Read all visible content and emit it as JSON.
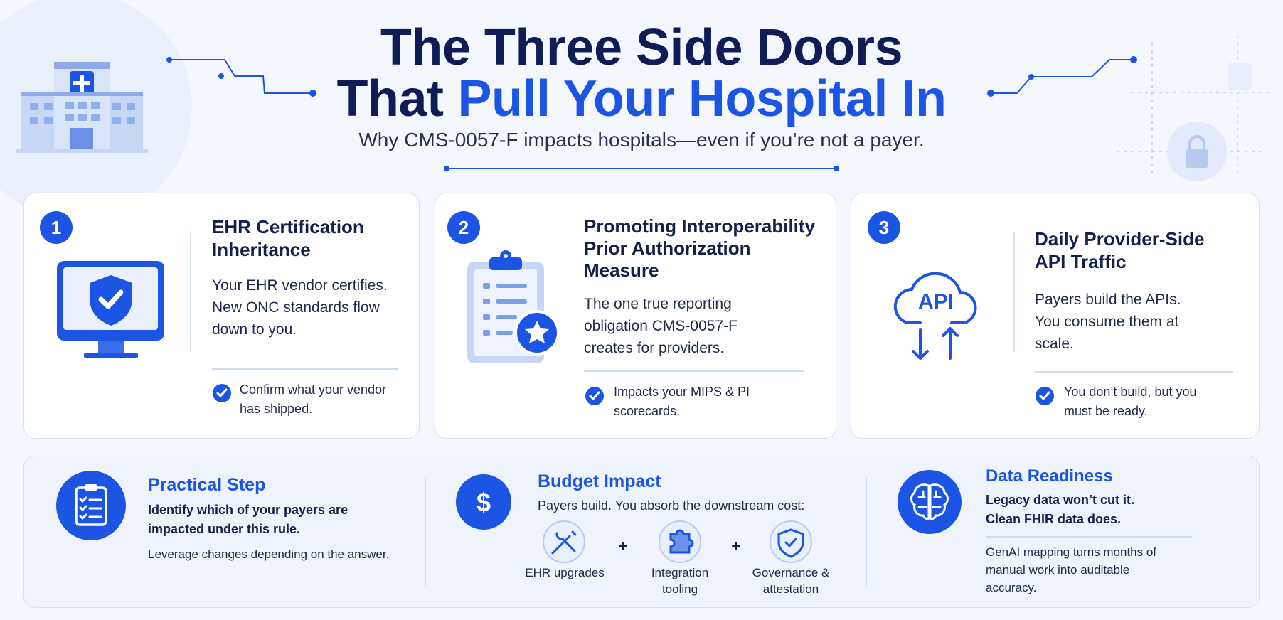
{
  "header": {
    "title_line1": "The Three Side Doors",
    "title_line2_lead": "That",
    "title_line2_highlight": "Pull Your Hospital In",
    "subtitle": "Why CMS-0057-F impacts hospitals—even if you’re not a payer."
  },
  "cards": [
    {
      "number": "1",
      "title": "EHR Certification Inheritance",
      "body": "Your EHR vendor certifies. New ONC standards flow down to you.",
      "note": "Confirm what your vendor has shipped."
    },
    {
      "number": "2",
      "title": "Promoting Interoperability Prior Authorization Measure",
      "body": "The one true reporting obligation CMS-0057-F creates for providers.",
      "note": "Impacts your MIPS & PI scorecards."
    },
    {
      "number": "3",
      "icon_label": "API",
      "title": "Daily Provider-Side API Traffic",
      "body": "Payers build the APIs. You consume them at scale.",
      "note": "You don’t build, but you must be ready."
    }
  ],
  "bottom": {
    "practical": {
      "title": "Practical Step",
      "lead": "Identify which of your payers are impacted under this rule.",
      "note": "Leverage changes depending on the answer."
    },
    "budget": {
      "icon_label": "$",
      "title": "Budget Impact",
      "lead": "Payers build. You absorb the downstream cost:",
      "items": [
        "EHR upgrades",
        "Integration tooling",
        "Governance & attestation"
      ]
    },
    "data": {
      "title": "Data Readiness",
      "lead": "Legacy data won’t cut it. Clean FHIR data does.",
      "note": "GenAI mapping turns months of manual work into auditable accuracy."
    }
  }
}
